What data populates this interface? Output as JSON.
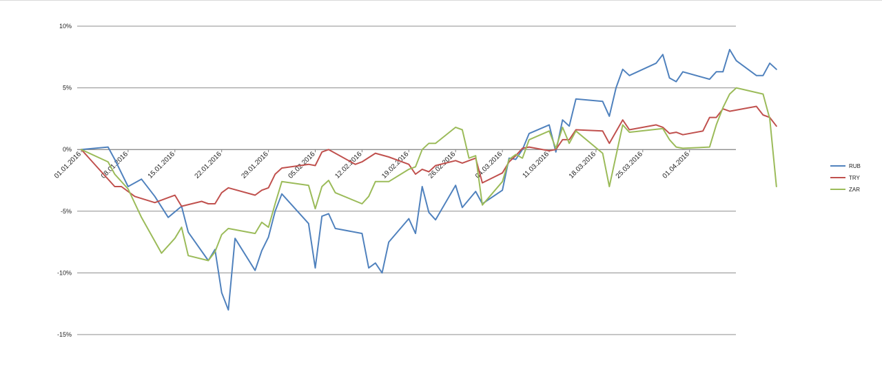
{
  "chart_data": {
    "type": "line",
    "title": "",
    "xlabel": "",
    "ylabel": "",
    "ylim": [
      -15,
      10
    ],
    "y_ticks": [
      "10%",
      "5%",
      "0%",
      "-5%",
      "-10%",
      "-15%"
    ],
    "y_tick_values": [
      10,
      5,
      0,
      -5,
      -10,
      -15
    ],
    "x_range": [
      "2016-01-01",
      "2016-04-10"
    ],
    "x_tick_labels": [
      "01.01.2016",
      "08.01.2016",
      "15.01.2016",
      "22.01.2016",
      "29.01.2016",
      "05.02.2016",
      "12.02.2016",
      "19.02.2016",
      "26.02.2016",
      "04.03.2016",
      "11.03.2016",
      "18.03.2016",
      "25.03.2016",
      "01.04.2016"
    ],
    "x_tick_dates": [
      "2016-01-01",
      "2016-01-08",
      "2016-01-15",
      "2016-01-22",
      "2016-01-29",
      "2016-02-05",
      "2016-02-12",
      "2016-02-19",
      "2016-02-26",
      "2016-03-04",
      "2016-03-11",
      "2016-03-18",
      "2016-03-25",
      "2016-04-01"
    ],
    "grid": "horizontal",
    "legend_position": "right",
    "series": [
      {
        "name": "RUB",
        "color": "#4f81bd",
        "points": [
          [
            "2016-01-01",
            0
          ],
          [
            "2016-01-05",
            0.2
          ],
          [
            "2016-01-06",
            -0.8
          ],
          [
            "2016-01-08",
            -3
          ],
          [
            "2016-01-10",
            -2.4
          ],
          [
            "2016-01-12",
            -3.8
          ],
          [
            "2016-01-14",
            -5.5
          ],
          [
            "2016-01-16",
            -4.6
          ],
          [
            "2016-01-17",
            -6.7
          ],
          [
            "2016-01-20",
            -9
          ],
          [
            "2016-01-21",
            -8.1
          ],
          [
            "2016-01-22",
            -11.6
          ],
          [
            "2016-01-23",
            -13
          ],
          [
            "2016-01-24",
            -7.2
          ],
          [
            "2016-01-27",
            -9.8
          ],
          [
            "2016-01-28",
            -8.2
          ],
          [
            "2016-01-29",
            -7.1
          ],
          [
            "2016-01-30",
            -5
          ],
          [
            "2016-01-31",
            -3.6
          ],
          [
            "2016-02-04",
            -6
          ],
          [
            "2016-02-05",
            -9.6
          ],
          [
            "2016-02-06",
            -5.4
          ],
          [
            "2016-02-07",
            -5.2
          ],
          [
            "2016-02-08",
            -6.4
          ],
          [
            "2016-02-12",
            -6.8
          ],
          [
            "2016-02-13",
            -9.6
          ],
          [
            "2016-02-14",
            -9.2
          ],
          [
            "2016-02-15",
            -10
          ],
          [
            "2016-02-16",
            -7.5
          ],
          [
            "2016-02-19",
            -5.6
          ],
          [
            "2016-02-20",
            -6.8
          ],
          [
            "2016-02-21",
            -3
          ],
          [
            "2016-02-22",
            -5.1
          ],
          [
            "2016-02-23",
            -5.7
          ],
          [
            "2016-02-26",
            -2.9
          ],
          [
            "2016-02-27",
            -4.7
          ],
          [
            "2016-02-29",
            -3.4
          ],
          [
            "2016-03-01",
            -4.4
          ],
          [
            "2016-03-04",
            -3.3
          ],
          [
            "2016-03-05",
            -0.7
          ],
          [
            "2016-03-06",
            -0.8
          ],
          [
            "2016-03-07",
            0
          ],
          [
            "2016-03-08",
            1.3
          ],
          [
            "2016-03-11",
            2
          ],
          [
            "2016-03-12",
            -0.2
          ],
          [
            "2016-03-13",
            2.4
          ],
          [
            "2016-03-14",
            1.9
          ],
          [
            "2016-03-15",
            4.1
          ],
          [
            "2016-03-19",
            3.9
          ],
          [
            "2016-03-20",
            2.7
          ],
          [
            "2016-03-21",
            5
          ],
          [
            "2016-03-22",
            6.5
          ],
          [
            "2016-03-23",
            6
          ],
          [
            "2016-03-27",
            7
          ],
          [
            "2016-03-28",
            7.7
          ],
          [
            "2016-03-29",
            5.8
          ],
          [
            "2016-03-30",
            5.5
          ],
          [
            "2016-03-31",
            6.3
          ],
          [
            "2016-04-04",
            5.7
          ],
          [
            "2016-04-05",
            6.3
          ],
          [
            "2016-04-06",
            6.3
          ],
          [
            "2016-04-07",
            8.1
          ],
          [
            "2016-04-08",
            7.2
          ],
          [
            "2016-04-11",
            6
          ],
          [
            "2016-04-12",
            6
          ],
          [
            "2016-04-13",
            7
          ],
          [
            "2016-04-14",
            6.5
          ]
        ]
      },
      {
        "name": "TRY",
        "color": "#c0504d",
        "points": [
          [
            "2016-01-01",
            0
          ],
          [
            "2016-01-04",
            -1.8
          ],
          [
            "2016-01-06",
            -3
          ],
          [
            "2016-01-07",
            -3
          ],
          [
            "2016-01-09",
            -3.8
          ],
          [
            "2016-01-12",
            -4.3
          ],
          [
            "2016-01-14",
            -3.9
          ],
          [
            "2016-01-15",
            -3.7
          ],
          [
            "2016-01-16",
            -4.6
          ],
          [
            "2016-01-19",
            -4.2
          ],
          [
            "2016-01-20",
            -4.4
          ],
          [
            "2016-01-21",
            -4.4
          ],
          [
            "2016-01-22",
            -3.5
          ],
          [
            "2016-01-23",
            -3.1
          ],
          [
            "2016-01-27",
            -3.7
          ],
          [
            "2016-01-28",
            -3.3
          ],
          [
            "2016-01-29",
            -3.1
          ],
          [
            "2016-01-30",
            -2
          ],
          [
            "2016-01-31",
            -1.5
          ],
          [
            "2016-02-04",
            -1.2
          ],
          [
            "2016-02-05",
            -1.3
          ],
          [
            "2016-02-06",
            -0.2
          ],
          [
            "2016-02-07",
            0
          ],
          [
            "2016-02-11",
            -1.2
          ],
          [
            "2016-02-12",
            -1
          ],
          [
            "2016-02-14",
            -0.3
          ],
          [
            "2016-02-16",
            -0.6
          ],
          [
            "2016-02-19",
            -1.2
          ],
          [
            "2016-02-20",
            -2
          ],
          [
            "2016-02-21",
            -1.6
          ],
          [
            "2016-02-22",
            -1.8
          ],
          [
            "2016-02-23",
            -1.3
          ],
          [
            "2016-02-26",
            -0.9
          ],
          [
            "2016-02-27",
            -1.1
          ],
          [
            "2016-02-28",
            -0.9
          ],
          [
            "2016-02-29",
            -0.7
          ],
          [
            "2016-03-01",
            -2.7
          ],
          [
            "2016-03-04",
            -1.9
          ],
          [
            "2016-03-05",
            -1
          ],
          [
            "2016-03-06",
            -0.5
          ],
          [
            "2016-03-07",
            0.1
          ],
          [
            "2016-03-08",
            0.2
          ],
          [
            "2016-03-11",
            -0.1
          ],
          [
            "2016-03-12",
            0
          ],
          [
            "2016-03-13",
            0.8
          ],
          [
            "2016-03-14",
            0.8
          ],
          [
            "2016-03-15",
            1.6
          ],
          [
            "2016-03-19",
            1.5
          ],
          [
            "2016-03-20",
            0.5
          ],
          [
            "2016-03-22",
            2.4
          ],
          [
            "2016-03-23",
            1.6
          ],
          [
            "2016-03-27",
            2
          ],
          [
            "2016-03-28",
            1.8
          ],
          [
            "2016-03-29",
            1.3
          ],
          [
            "2016-03-30",
            1.4
          ],
          [
            "2016-03-31",
            1.2
          ],
          [
            "2016-04-03",
            1.5
          ],
          [
            "2016-04-04",
            2.6
          ],
          [
            "2016-04-05",
            2.6
          ],
          [
            "2016-04-06",
            3.3
          ],
          [
            "2016-04-07",
            3.1
          ],
          [
            "2016-04-11",
            3.5
          ],
          [
            "2016-04-12",
            2.8
          ],
          [
            "2016-04-13",
            2.6
          ],
          [
            "2016-04-14",
            1.9
          ]
        ]
      },
      {
        "name": "ZAR",
        "color": "#9bbb59",
        "points": [
          [
            "2016-01-01",
            0
          ],
          [
            "2016-01-05",
            -1
          ],
          [
            "2016-01-06",
            -2
          ],
          [
            "2016-01-08",
            -3.2
          ],
          [
            "2016-01-10",
            -5.5
          ],
          [
            "2016-01-13",
            -8.4
          ],
          [
            "2016-01-15",
            -7.2
          ],
          [
            "2016-01-16",
            -6.3
          ],
          [
            "2016-01-17",
            -8.6
          ],
          [
            "2016-01-20",
            -9
          ],
          [
            "2016-01-21",
            -8.3
          ],
          [
            "2016-01-22",
            -6.9
          ],
          [
            "2016-01-23",
            -6.4
          ],
          [
            "2016-01-27",
            -6.8
          ],
          [
            "2016-01-28",
            -5.9
          ],
          [
            "2016-01-29",
            -6.3
          ],
          [
            "2016-01-30",
            -4.4
          ],
          [
            "2016-01-31",
            -2.6
          ],
          [
            "2016-02-04",
            -2.9
          ],
          [
            "2016-02-05",
            -4.8
          ],
          [
            "2016-02-06",
            -3
          ],
          [
            "2016-02-07",
            -2.5
          ],
          [
            "2016-02-08",
            -3.5
          ],
          [
            "2016-02-12",
            -4.4
          ],
          [
            "2016-02-13",
            -3.8
          ],
          [
            "2016-02-14",
            -2.6
          ],
          [
            "2016-02-16",
            -2.6
          ],
          [
            "2016-02-19",
            -1.6
          ],
          [
            "2016-02-20",
            -1.4
          ],
          [
            "2016-02-21",
            0
          ],
          [
            "2016-02-22",
            0.5
          ],
          [
            "2016-02-23",
            0.5
          ],
          [
            "2016-02-26",
            1.8
          ],
          [
            "2016-02-27",
            1.6
          ],
          [
            "2016-02-28",
            -0.7
          ],
          [
            "2016-02-29",
            -0.5
          ],
          [
            "2016-03-01",
            -4.5
          ],
          [
            "2016-03-04",
            -2.6
          ],
          [
            "2016-03-05",
            -0.8
          ],
          [
            "2016-03-06",
            -0.4
          ],
          [
            "2016-03-07",
            -0.7
          ],
          [
            "2016-03-08",
            0.8
          ],
          [
            "2016-03-11",
            1.5
          ],
          [
            "2016-03-12",
            0.1
          ],
          [
            "2016-03-13",
            1.8
          ],
          [
            "2016-03-14",
            0.5
          ],
          [
            "2016-03-15",
            1.5
          ],
          [
            "2016-03-19",
            -0.3
          ],
          [
            "2016-03-20",
            -3
          ],
          [
            "2016-03-22",
            2
          ],
          [
            "2016-03-23",
            1.4
          ],
          [
            "2016-03-28",
            1.7
          ],
          [
            "2016-03-29",
            0.8
          ],
          [
            "2016-03-30",
            0.2
          ],
          [
            "2016-03-31",
            0.1
          ],
          [
            "2016-04-04",
            0.2
          ],
          [
            "2016-04-05",
            2
          ],
          [
            "2016-04-06",
            3.4
          ],
          [
            "2016-04-07",
            4.5
          ],
          [
            "2016-04-08",
            5
          ],
          [
            "2016-04-12",
            4.5
          ],
          [
            "2016-04-13",
            2.5
          ],
          [
            "2016-04-14",
            -3
          ]
        ]
      }
    ]
  }
}
